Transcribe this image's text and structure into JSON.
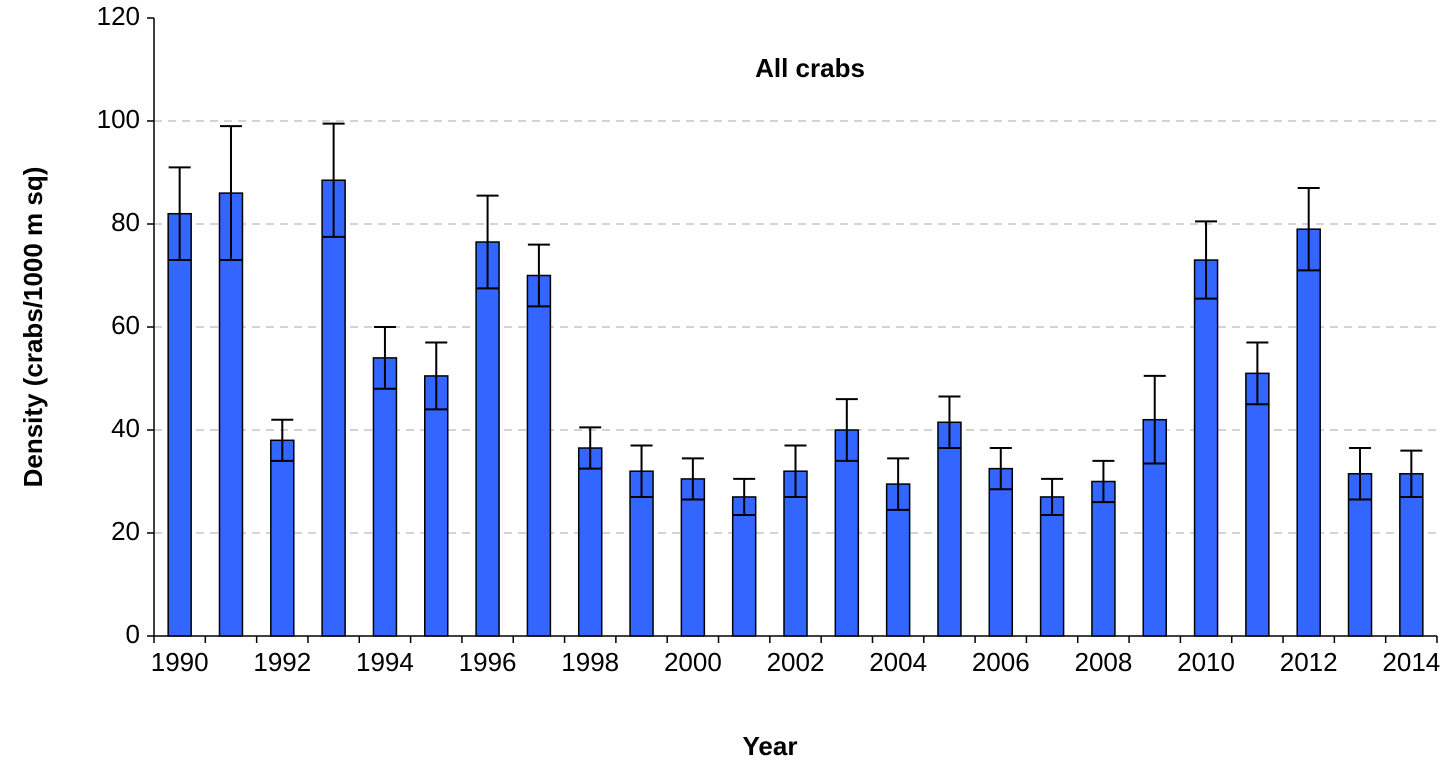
{
  "chart_data": {
    "type": "bar",
    "title": "All crabs",
    "x_label": "Year",
    "y_label": "Density (crabs/1000 m sq)",
    "categories": [
      "1990",
      null,
      "1992",
      null,
      "1994",
      null,
      "1996",
      null,
      "1998",
      null,
      "2000",
      null,
      "2002",
      null,
      "2004",
      null,
      "2006",
      null,
      "2008",
      null,
      "2010",
      null,
      "2012",
      null,
      "2014"
    ],
    "values": [
      82,
      86,
      38,
      88.5,
      54,
      50.5,
      76.5,
      70,
      36.5,
      32,
      30.5,
      27,
      32,
      40,
      29.5,
      41.5,
      32.5,
      27,
      30,
      42,
      73,
      51,
      79,
      31.5,
      31.5
    ],
    "errors": [
      9,
      13,
      4,
      11,
      6,
      6.5,
      9,
      6,
      4,
      5,
      4,
      3.5,
      5,
      6,
      5,
      5,
      4,
      3.5,
      4,
      8.5,
      7.5,
      6,
      8,
      5,
      4.5
    ],
    "color": "#3366ff",
    "ylim": [
      0,
      120
    ],
    "yticks": [
      0,
      20,
      40,
      60,
      80,
      100,
      120
    ],
    "grid": true
  }
}
